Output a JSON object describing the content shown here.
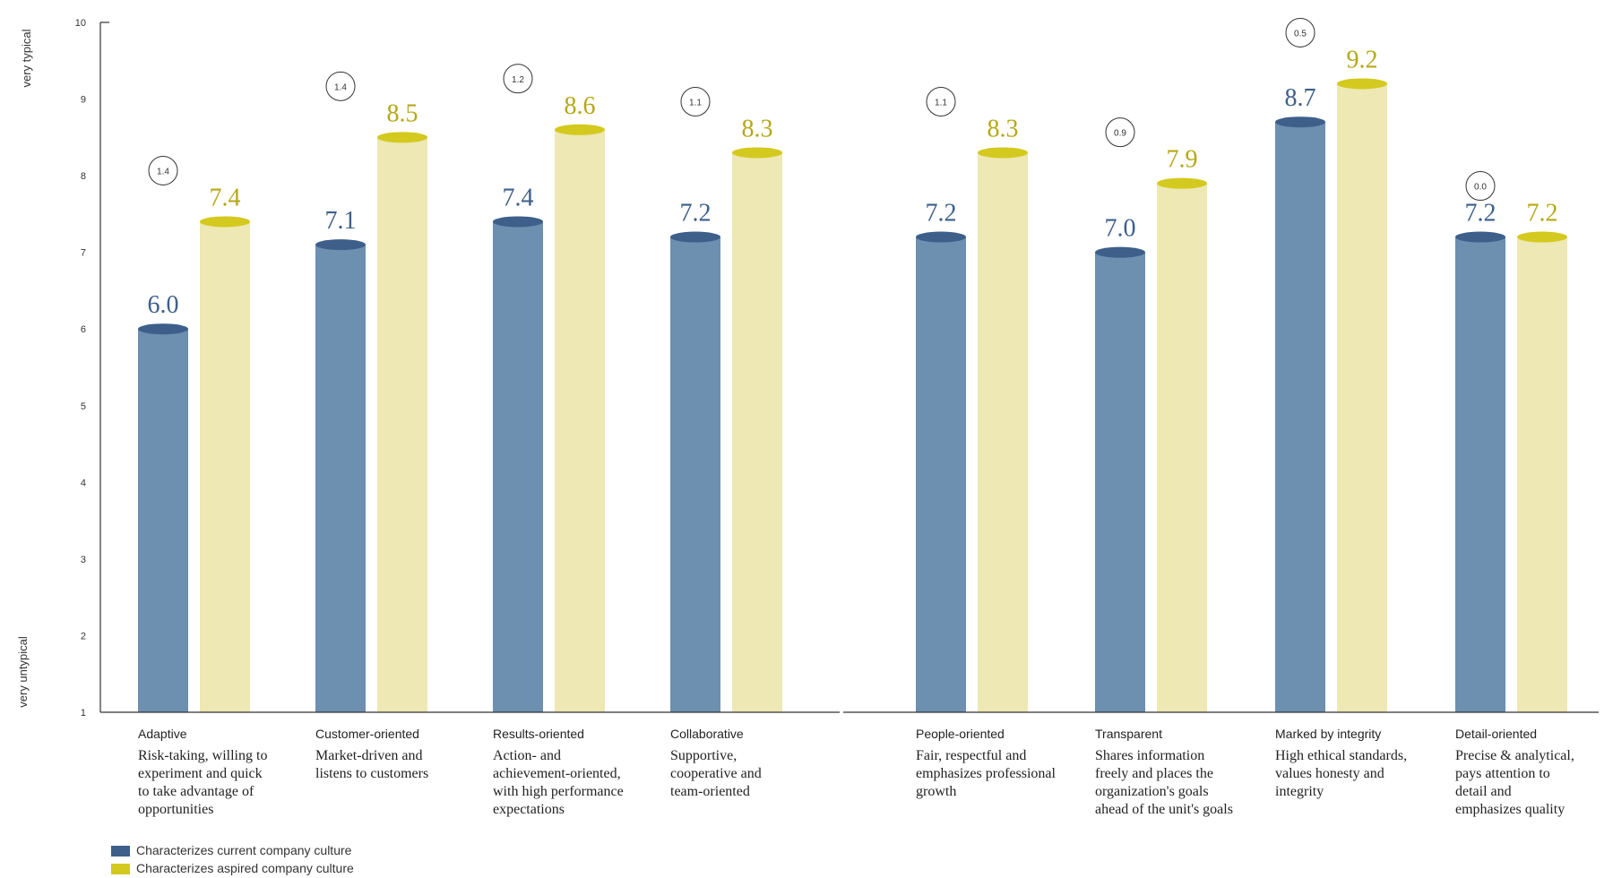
{
  "chart_data": {
    "type": "bar",
    "ylim": [
      1,
      10
    ],
    "yticks": [
      "1",
      "2",
      "3",
      "4",
      "5",
      "6",
      "7",
      "8",
      "9",
      "10"
    ],
    "ylabel_top": "very typical",
    "ylabel_bottom": "very untypical",
    "categories": [
      {
        "name": "Adaptive",
        "description": [
          "Risk-taking, willing to",
          "experiment and quick",
          "to take advantage of",
          "opportunities"
        ],
        "current_label": "6.0",
        "aspired_label": "7.4",
        "difference": "1.4"
      },
      {
        "name": "Customer-oriented",
        "description": [
          "Market-driven and",
          "listens to customers"
        ],
        "current_label": "7.1",
        "aspired_label": "8.5",
        "difference": "1.4"
      },
      {
        "name": "Results-oriented",
        "description": [
          "Action- and",
          "achievement-oriented,",
          "with high performance",
          "expectations"
        ],
        "current_label": "7.4",
        "aspired_label": "8.6",
        "difference": "1.2"
      },
      {
        "name": "Collaborative",
        "description": [
          "Supportive,",
          "cooperative and",
          "team-oriented"
        ],
        "current_label": "7.2",
        "aspired_label": "8.3",
        "difference": "1.1"
      },
      {
        "name": "People-oriented",
        "description": [
          "Fair, respectful and",
          "emphasizes professional",
          "growth"
        ],
        "current_label": "7.2",
        "aspired_label": "8.3",
        "difference": "1.1"
      },
      {
        "name": "Transparent",
        "description": [
          "Shares information",
          "freely and places the",
          "organization's goals",
          "ahead of the unit's goals"
        ],
        "current_label": "7.0",
        "aspired_label": "7.9",
        "difference": "0.9"
      },
      {
        "name": "Marked by integrity",
        "description": [
          "High ethical standards,",
          "values honesty and",
          "integrity"
        ],
        "current_label": "8.7",
        "aspired_label": "9.2",
        "difference": "0.5"
      },
      {
        "name": "Detail-oriented",
        "description": [
          "Precise & analytical,",
          "pays attention to",
          "detail and",
          "emphasizes quality"
        ],
        "current_label": "7.2",
        "aspired_label": "7.2",
        "difference": "0.0"
      }
    ],
    "series": [
      {
        "name": "Characterizes current company culture",
        "values": [
          6.0,
          7.1,
          7.4,
          7.2,
          7.2,
          7.0,
          8.7,
          7.2
        ]
      },
      {
        "name": "Characterizes aspired company culture",
        "values": [
          7.4,
          8.5,
          8.6,
          8.3,
          8.3,
          7.9,
          9.2,
          7.2
        ]
      }
    ]
  },
  "colors": {
    "current_body": "#6d8fb0",
    "current_top": "#3d5f8a",
    "current_label": "#3d5f8a",
    "aspired_body": "#ede8b4",
    "aspired_top": "#d4c91e",
    "aspired_label": "#b5a817",
    "legend_current": "#3d5f8a",
    "legend_aspired": "#d4c91e",
    "axis": "#333333"
  }
}
